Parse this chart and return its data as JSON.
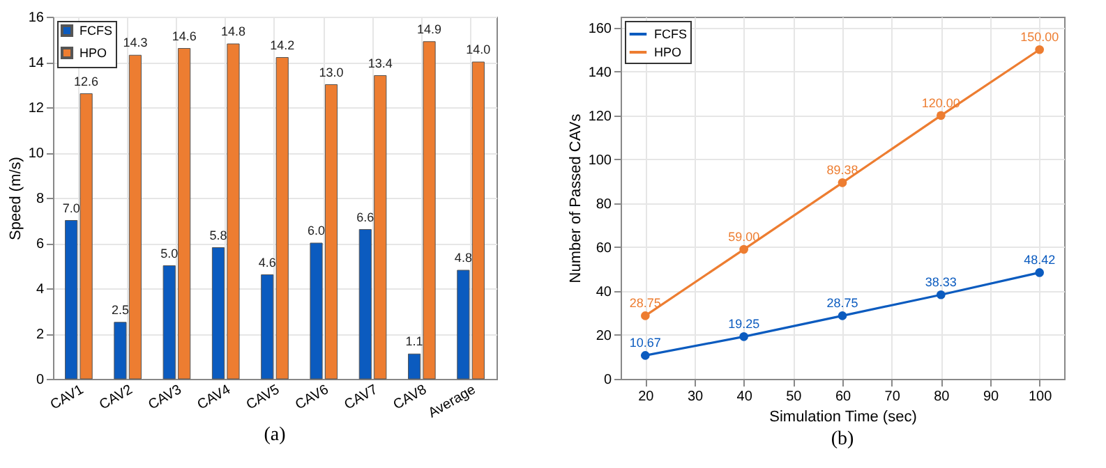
{
  "chart_data": [
    {
      "type": "bar",
      "categories": [
        "CAV1",
        "CAV2",
        "CAV3",
        "CAV4",
        "CAV5",
        "CAV6",
        "CAV7",
        "CAV8",
        "Average"
      ],
      "ylabel": "Speed (m/s)",
      "ylim": [
        0,
        16
      ],
      "yticks": [
        0,
        2,
        4,
        6,
        8,
        10,
        12,
        14,
        16
      ],
      "grid": true,
      "legend": "top left",
      "annotations": [
        "(a)"
      ],
      "series": [
        {
          "name": "FCFS",
          "color": "#0b5bbf",
          "values": [
            7.0,
            2.5,
            5.0,
            5.8,
            4.6,
            6.0,
            6.6,
            1.1,
            4.8
          ],
          "value_labels": [
            "7.0",
            "2.5",
            "5.0",
            "5.8",
            "4.6",
            "6.0",
            "6.6",
            "1.1",
            "4.8"
          ]
        },
        {
          "name": "HPO",
          "color": "#ed7d31",
          "values": [
            12.6,
            14.3,
            14.6,
            14.8,
            14.2,
            13.0,
            13.4,
            14.9,
            14.0
          ],
          "value_labels": [
            "12.6",
            "14.3",
            "14.6",
            "14.8",
            "14.2",
            "13.0",
            "13.4",
            "14.9",
            "14.0"
          ]
        }
      ]
    },
    {
      "type": "line",
      "x": [
        20,
        40,
        60,
        80,
        100
      ],
      "xlabel": "Simulation Time (sec)",
      "ylabel": "Number of Passed CAVs",
      "xlim": [
        15,
        105
      ],
      "xticks": [
        20,
        30,
        40,
        50,
        60,
        70,
        80,
        90,
        100
      ],
      "ylim": [
        0,
        165
      ],
      "yticks": [
        0,
        20,
        40,
        60,
        80,
        100,
        120,
        140,
        160
      ],
      "grid": true,
      "legend": "top left",
      "marker": "circle",
      "line_style": "solid",
      "annotations": [
        "(b)"
      ],
      "series": [
        {
          "name": "FCFS",
          "color": "#0b5bbf",
          "values": [
            10.67,
            19.25,
            28.75,
            38.33,
            48.42
          ],
          "value_labels": [
            "10.67",
            "19.25",
            "28.75",
            "38.33",
            "48.42"
          ]
        },
        {
          "name": "HPO",
          "color": "#ed7d31",
          "values": [
            28.75,
            59.0,
            89.38,
            120.0,
            150.0
          ],
          "value_labels": [
            "28.75",
            "59.00",
            "89.38",
            "120.00",
            "150.00"
          ]
        }
      ]
    }
  ]
}
